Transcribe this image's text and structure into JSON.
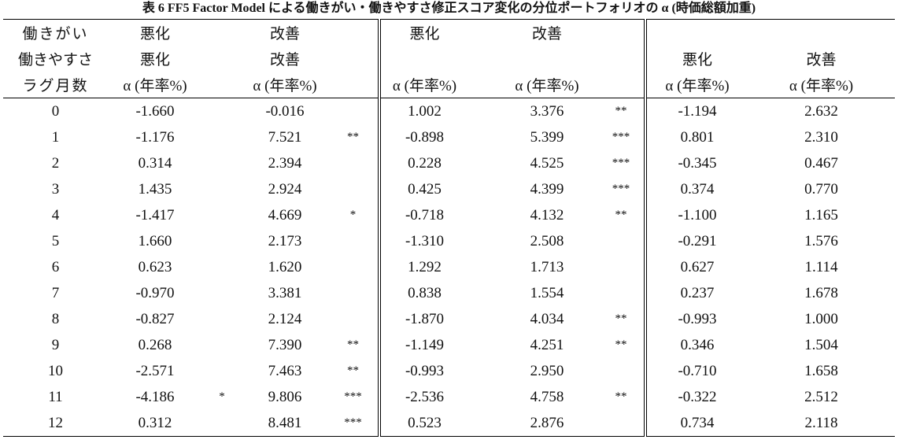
{
  "caption": "表 6 FF5 Factor Model による働きがい・働きやすさ修正スコア変化の分位ポートフォリオの α (時価総額加重)",
  "header": {
    "row1": {
      "label": "働きがい",
      "g1_left": "悪化",
      "g1_right": "改善",
      "g2_left": "悪化",
      "g2_right": "改善",
      "g3_left": "",
      "g3_right": ""
    },
    "row2": {
      "label": "働きやすさ",
      "g1_left": "悪化",
      "g1_right": "改善",
      "g2_left": "",
      "g2_right": "",
      "g3_left": "悪化",
      "g3_right": "改善"
    },
    "row3": {
      "label": "ラグ月数",
      "col": "α (年率%)"
    }
  },
  "rows": [
    {
      "lag": "0",
      "a": "-1.660",
      "as": "",
      "b": "-0.016",
      "bs": "",
      "c": "1.002",
      "cs": "",
      "d": "3.376",
      "ds": "**",
      "e": "-1.194",
      "f": "2.632"
    },
    {
      "lag": "1",
      "a": "-1.176",
      "as": "",
      "b": "7.521",
      "bs": "**",
      "c": "-0.898",
      "cs": "",
      "d": "5.399",
      "ds": "***",
      "e": "0.801",
      "f": "2.310"
    },
    {
      "lag": "2",
      "a": "0.314",
      "as": "",
      "b": "2.394",
      "bs": "",
      "c": "0.228",
      "cs": "",
      "d": "4.525",
      "ds": "***",
      "e": "-0.345",
      "f": "0.467"
    },
    {
      "lag": "3",
      "a": "1.435",
      "as": "",
      "b": "2.924",
      "bs": "",
      "c": "0.425",
      "cs": "",
      "d": "4.399",
      "ds": "***",
      "e": "0.374",
      "f": "0.770"
    },
    {
      "lag": "4",
      "a": "-1.417",
      "as": "",
      "b": "4.669",
      "bs": "*",
      "c": "-0.718",
      "cs": "",
      "d": "4.132",
      "ds": "**",
      "e": "-1.100",
      "f": "1.165"
    },
    {
      "lag": "5",
      "a": "1.660",
      "as": "",
      "b": "2.173",
      "bs": "",
      "c": "-1.310",
      "cs": "",
      "d": "2.508",
      "ds": "",
      "e": "-0.291",
      "f": "1.576"
    },
    {
      "lag": "6",
      "a": "0.623",
      "as": "",
      "b": "1.620",
      "bs": "",
      "c": "1.292",
      "cs": "",
      "d": "1.713",
      "ds": "",
      "e": "0.627",
      "f": "1.114"
    },
    {
      "lag": "7",
      "a": "-0.970",
      "as": "",
      "b": "3.381",
      "bs": "",
      "c": "0.838",
      "cs": "",
      "d": "1.554",
      "ds": "",
      "e": "0.237",
      "f": "1.678"
    },
    {
      "lag": "8",
      "a": "-0.827",
      "as": "",
      "b": "2.124",
      "bs": "",
      "c": "-1.870",
      "cs": "",
      "d": "4.034",
      "ds": "**",
      "e": "-0.993",
      "f": "1.000"
    },
    {
      "lag": "9",
      "a": "0.268",
      "as": "",
      "b": "7.390",
      "bs": "**",
      "c": "-1.149",
      "cs": "",
      "d": "4.251",
      "ds": "**",
      "e": "0.346",
      "f": "1.504"
    },
    {
      "lag": "10",
      "a": "-2.571",
      "as": "",
      "b": "7.463",
      "bs": "**",
      "c": "-0.993",
      "cs": "",
      "d": "2.950",
      "ds": "",
      "e": "-0.710",
      "f": "1.658"
    },
    {
      "lag": "11",
      "a": "-4.186",
      "as": "*",
      "b": "9.806",
      "bs": "***",
      "c": "-2.536",
      "cs": "",
      "d": "4.758",
      "ds": "**",
      "e": "-0.322",
      "f": "2.512"
    },
    {
      "lag": "12",
      "a": "0.312",
      "as": "",
      "b": "8.481",
      "bs": "***",
      "c": "0.523",
      "cs": "",
      "d": "2.876",
      "ds": "",
      "e": "0.734",
      "f": "2.118"
    }
  ]
}
